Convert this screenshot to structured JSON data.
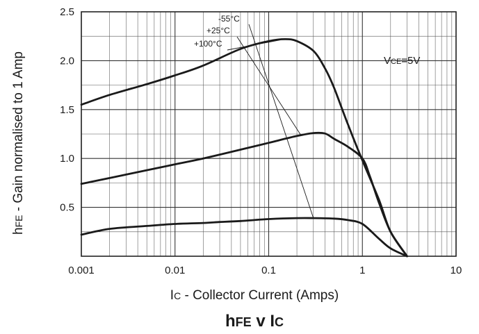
{
  "chart_data": {
    "type": "line",
    "title": "hFE v IC",
    "xlabel": "IC - Collector Current (Amps)",
    "ylabel": "hFE - Gain normalised to 1 Amp",
    "x_scale": "log",
    "xlim": [
      0.001,
      10
    ],
    "ylim": [
      0,
      2.5
    ],
    "x_tick_labels": [
      "0.001",
      "0.01",
      "0.1",
      "1",
      "10"
    ],
    "x_ticks": [
      0.001,
      0.01,
      0.1,
      1,
      10
    ],
    "y_tick_labels": [
      "0.5",
      "1.0",
      "1.5",
      "2.0",
      "2.5"
    ],
    "y_ticks": [
      0.5,
      1.0,
      1.5,
      2.0,
      2.5
    ],
    "grid": true,
    "annotation": "VCE=5V",
    "series": [
      {
        "name": "-55°C",
        "x": [
          0.001,
          0.002,
          0.005,
          0.01,
          0.02,
          0.03,
          0.05,
          0.1,
          0.2,
          0.3,
          0.5,
          0.7,
          1.0,
          1.5,
          2.0,
          3.0
        ],
        "y": [
          0.22,
          0.28,
          0.31,
          0.33,
          0.34,
          0.35,
          0.36,
          0.38,
          0.39,
          0.39,
          0.385,
          0.37,
          0.33,
          0.18,
          0.08,
          0.0
        ]
      },
      {
        "name": "+25°C",
        "x": [
          0.001,
          0.002,
          0.005,
          0.01,
          0.02,
          0.05,
          0.1,
          0.2,
          0.3,
          0.4,
          0.5,
          0.7,
          1.0,
          1.2,
          1.5,
          2.0,
          3.0
        ],
        "y": [
          0.74,
          0.8,
          0.88,
          0.94,
          1.0,
          1.09,
          1.16,
          1.23,
          1.26,
          1.255,
          1.2,
          1.12,
          1.0,
          0.82,
          0.55,
          0.25,
          0.0
        ]
      },
      {
        "name": "+100°C",
        "x": [
          0.001,
          0.002,
          0.005,
          0.01,
          0.02,
          0.05,
          0.1,
          0.15,
          0.2,
          0.3,
          0.4,
          0.5,
          0.7,
          1.0,
          1.5,
          2.0,
          3.0
        ],
        "y": [
          1.55,
          1.65,
          1.76,
          1.85,
          1.95,
          2.12,
          2.2,
          2.22,
          2.2,
          2.1,
          1.92,
          1.72,
          1.35,
          0.98,
          0.58,
          0.25,
          0.0
        ]
      }
    ],
    "colors": {
      "curve": "#1a1a1a",
      "grid": "#4a4a4a",
      "background": "#ffffff"
    }
  }
}
